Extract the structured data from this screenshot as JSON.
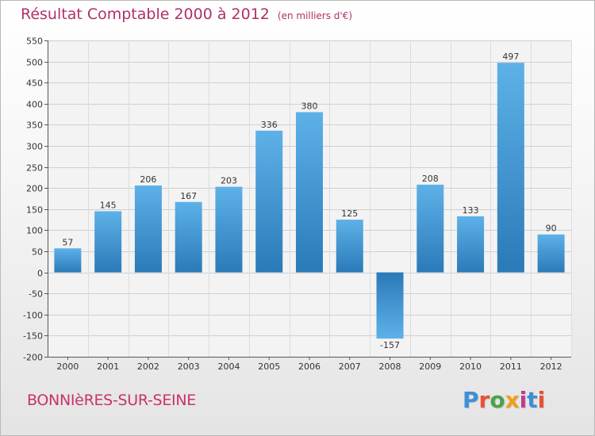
{
  "header": {
    "title": "Résultat Comptable 2000 à 2012",
    "subtitle": "(en milliers d'€)"
  },
  "footer": {
    "town": "BONNIèRES-SUR-SEINE",
    "brand": "Proxiti"
  },
  "colors": {
    "title": "#b0306a",
    "town": "#c8326e",
    "bar_light": "#5eb1e8",
    "bar_dark": "#2a7ab8",
    "brand": [
      "#3d8fd6",
      "#e8512f",
      "#4aa34a",
      "#f0a019",
      "#c23b8a",
      "#3d8fd6",
      "#e8512f"
    ]
  },
  "chart_data": {
    "type": "bar",
    "title": "Résultat Comptable 2000 à 2012",
    "subtitle": "(en milliers d'€)",
    "xlabel": "",
    "ylabel": "",
    "categories": [
      "2000",
      "2001",
      "2002",
      "2003",
      "2004",
      "2005",
      "2006",
      "2007",
      "2008",
      "2009",
      "2010",
      "2011",
      "2012"
    ],
    "values": [
      57,
      145,
      206,
      167,
      203,
      336,
      380,
      125,
      -157,
      208,
      133,
      497,
      90
    ],
    "value_labels": [
      "57",
      "145",
      "206",
      "167",
      "203",
      "336",
      "380",
      "125",
      "-157",
      "208",
      "133",
      "497",
      "90"
    ],
    "ylim": [
      -200,
      550
    ],
    "yticks": [
      -200,
      -150,
      -100,
      -50,
      0,
      50,
      100,
      150,
      200,
      250,
      300,
      350,
      400,
      450,
      500,
      550
    ],
    "ytick_labels": [
      "-200",
      "-150",
      "-100",
      "-50",
      "0",
      "50",
      "100",
      "150",
      "200",
      "250",
      "300",
      "350",
      "400",
      "450",
      "500",
      "550"
    ],
    "grid": true,
    "legend": "none"
  }
}
